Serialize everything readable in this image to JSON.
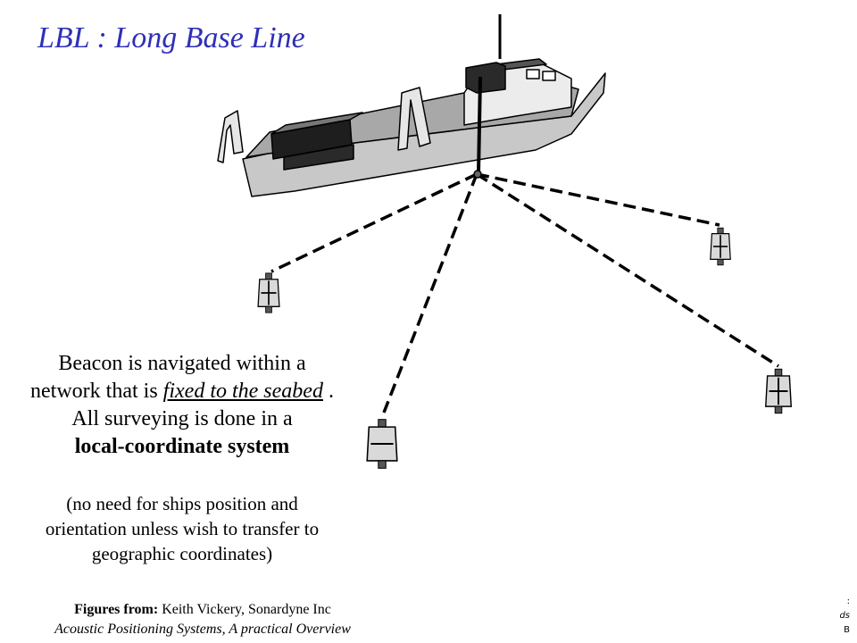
{
  "title": "LBL : Long Base Line",
  "description": {
    "line1": "Beacon is navigated within a",
    "line2_pre": "network that is ",
    "line2_emph": "fixed to the seabed",
    "line2_post": " .",
    "line3": "All surveying is done in a",
    "line4": "local-coordinate system"
  },
  "note": {
    "line1": "(no need for ships position and",
    "line2": "orientation unless wish to transfer to",
    "line3": "geographic coordinates)"
  },
  "credit": {
    "label": "Figures from",
    "colon": ":",
    "author": " Keith Vickery, Sonardyne Inc",
    "source": "Acoustic Positioning Systems, A practical Overview"
  },
  "edge_marks": [
    ":",
    "ds",
    "B"
  ],
  "colors": {
    "title": "#2f2fb8",
    "hull": "#c8c8c8",
    "deck": "#a8a8a8",
    "cargo": "#1e1e1e",
    "beacon": "#d9d9d9",
    "link": "#000000"
  },
  "diagram": {
    "vessel_icon": "survey-vessel-icon",
    "transducer_icon": "transducer-pole-icon",
    "beacon_icon": "seabed-beacon-icon",
    "beacon_count": 4
  }
}
